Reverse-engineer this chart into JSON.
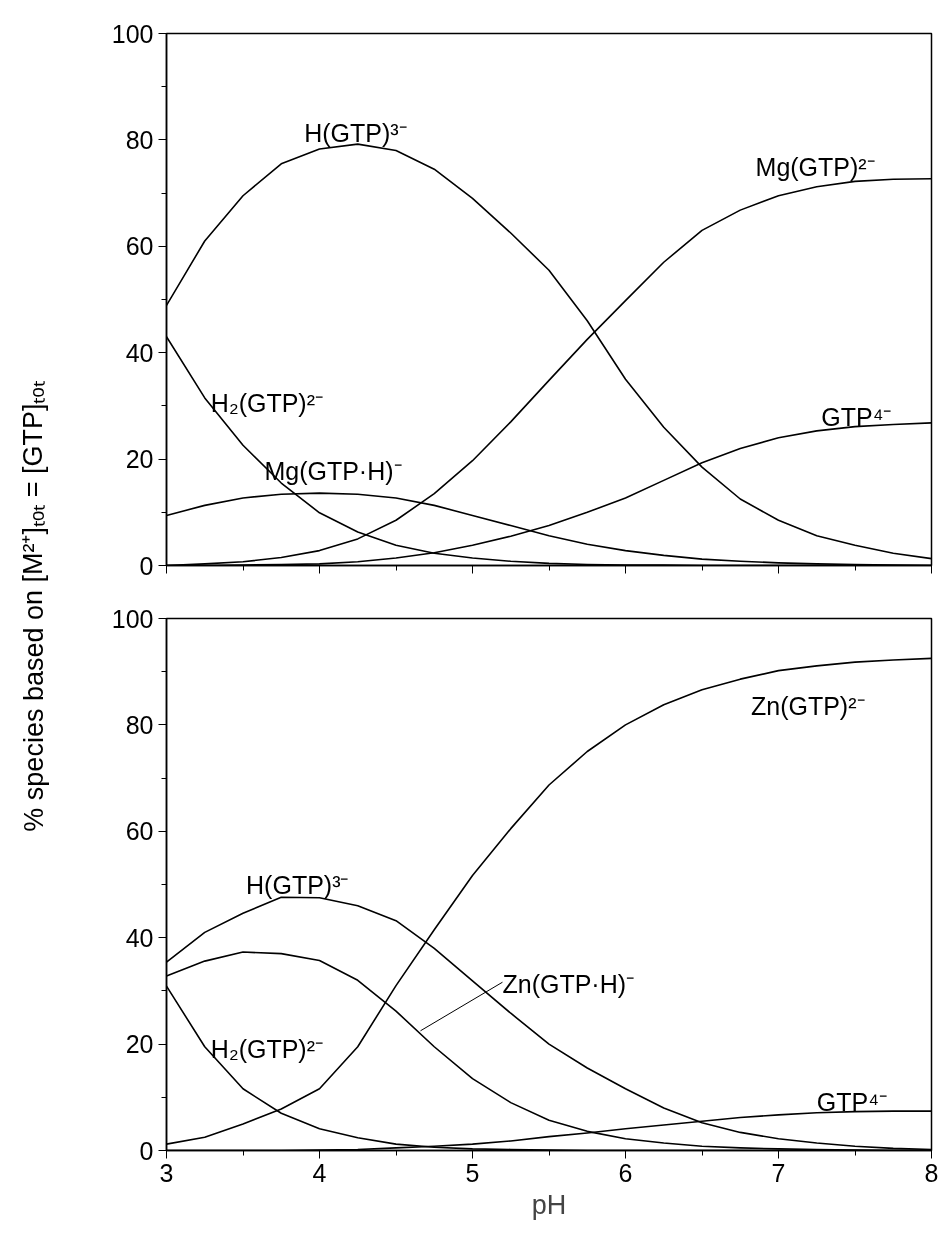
{
  "chart_data": [
    {
      "type": "line",
      "ylabel": "% species based on [M²⁺]ₜₒₜ = [GTP]ₜₒₜ",
      "x": [
        3,
        3.25,
        3.5,
        3.75,
        4,
        4.25,
        4.5,
        4.75,
        5,
        5.25,
        5.5,
        5.75,
        6,
        6.25,
        6.5,
        6.75,
        7,
        7.25,
        7.5,
        7.75,
        8
      ],
      "series": [
        {
          "color": "#000000",
          "values": [
            48.9,
            61,
            69.5,
            75.5,
            78.3,
            79.2,
            78,
            74.5,
            69,
            62.5,
            55.5,
            46,
            35,
            26,
            18.5,
            12.5,
            8.5,
            5.6,
            3.8,
            2.3,
            1.3
          ]
        },
        {
          "color": "#000000",
          "values": [
            0,
            0.3,
            0.7,
            1.5,
            2.8,
            5,
            8.5,
            13.5,
            19.7,
            27,
            34.8,
            42.5,
            49.8,
            57,
            63,
            66.8,
            69.5,
            71.2,
            72.2,
            72.6,
            72.7
          ]
        },
        {
          "color": "#000000",
          "values": [
            0,
            0,
            0.1,
            0.2,
            0.3,
            0.7,
            1.4,
            2.4,
            3.8,
            5.5,
            7.5,
            10,
            12.7,
            16,
            19.3,
            22,
            24,
            25.3,
            26.1,
            26.5,
            26.8
          ]
        },
        {
          "color": "#000000",
          "values": [
            43,
            31.5,
            22.6,
            15.5,
            9.9,
            6.3,
            3.8,
            2.3,
            1.4,
            0.8,
            0.4,
            0.2,
            0.1,
            0.1,
            0,
            0,
            0,
            0,
            0,
            0,
            0
          ]
        },
        {
          "color": "#000000",
          "values": [
            9.4,
            11.3,
            12.7,
            13.4,
            13.6,
            13.4,
            12.7,
            11.3,
            9.4,
            7.5,
            5.6,
            4,
            2.8,
            1.9,
            1.2,
            0.8,
            0.5,
            0.3,
            0.2,
            0.1,
            0
          ]
        }
      ],
      "annotations": [
        "H(GTP)³⁻",
        "Mg(GTP)²⁻",
        "H₂(GTP)²⁻",
        "Mg(GTP·H)⁻",
        "GTP⁴⁻"
      ],
      "xlim": [
        3,
        8
      ],
      "xticks": [
        {
          "value": 3,
          "label": null
        },
        {
          "value": 4,
          "label": null
        },
        {
          "value": 5,
          "label": null
        },
        {
          "value": 6,
          "label": null
        },
        {
          "value": 7,
          "label": null
        },
        {
          "value": 8,
          "label": null
        }
      ],
      "ylim": [
        0,
        100
      ],
      "yticks": [
        0,
        20,
        40,
        60,
        80,
        100
      ],
      "tick_labels": "y"
    },
    {
      "type": "line",
      "xlabel": "pH",
      "x": [
        3,
        3.25,
        3.5,
        3.75,
        4,
        4.25,
        4.5,
        4.75,
        5,
        5.25,
        5.5,
        5.75,
        6,
        6.25,
        6.5,
        6.75,
        7,
        7.25,
        7.5,
        7.75,
        8
      ],
      "series": [
        {
          "color": "#000000",
          "values": [
            1.2,
            2.5,
            5,
            7.8,
            11.6,
            19.5,
            31,
            41.5,
            51.7,
            60.5,
            68.7,
            75,
            80,
            83.8,
            86.6,
            88.6,
            90.2,
            91.1,
            91.8,
            92.2,
            92.5
          ]
        },
        {
          "color": "#000000",
          "values": [
            35.4,
            41,
            44.6,
            47.6,
            47.5,
            46,
            43.2,
            38,
            31.9,
            25.8,
            20,
            15.5,
            11.6,
            8,
            5.2,
            3.4,
            2.2,
            1.4,
            0.8,
            0.4,
            0.2
          ]
        },
        {
          "color": "#000000",
          "values": [
            32.8,
            35.6,
            37.3,
            37,
            35.7,
            32,
            26.2,
            19.5,
            13.5,
            9,
            5.7,
            3.6,
            2.2,
            1.4,
            0.8,
            0.5,
            0.3,
            0.2,
            0.1,
            0,
            0
          ]
        },
        {
          "color": "#000000",
          "values": [
            30.9,
            19.5,
            11.6,
            7,
            4.1,
            2.4,
            1.2,
            0.6,
            0.3,
            0.2,
            0.1,
            0,
            0,
            0,
            0,
            0,
            0,
            0,
            0,
            0,
            0
          ]
        },
        {
          "color": "#000000",
          "values": [
            0,
            0,
            0,
            0,
            0.1,
            0.2,
            0.5,
            0.8,
            1.2,
            1.8,
            2.6,
            3.3,
            4.1,
            4.8,
            5.5,
            6.2,
            6.7,
            7.1,
            7.3,
            7.4,
            7.4
          ]
        }
      ],
      "annotations": [
        "Zn(GTP)²⁻",
        "H(GTP)³⁻",
        {
          "text": "Zn(GTP·H)⁻",
          "x": 4.66,
          "y": 22.5
        },
        "H₂(GTP)²⁻",
        "GTP⁴⁻"
      ],
      "xlim": [
        3,
        8
      ],
      "xticks": [
        3,
        4,
        5,
        6,
        7,
        8
      ],
      "ylim": [
        0,
        100
      ],
      "yticks": [
        0,
        20,
        40,
        60,
        80,
        100
      ]
    }
  ]
}
